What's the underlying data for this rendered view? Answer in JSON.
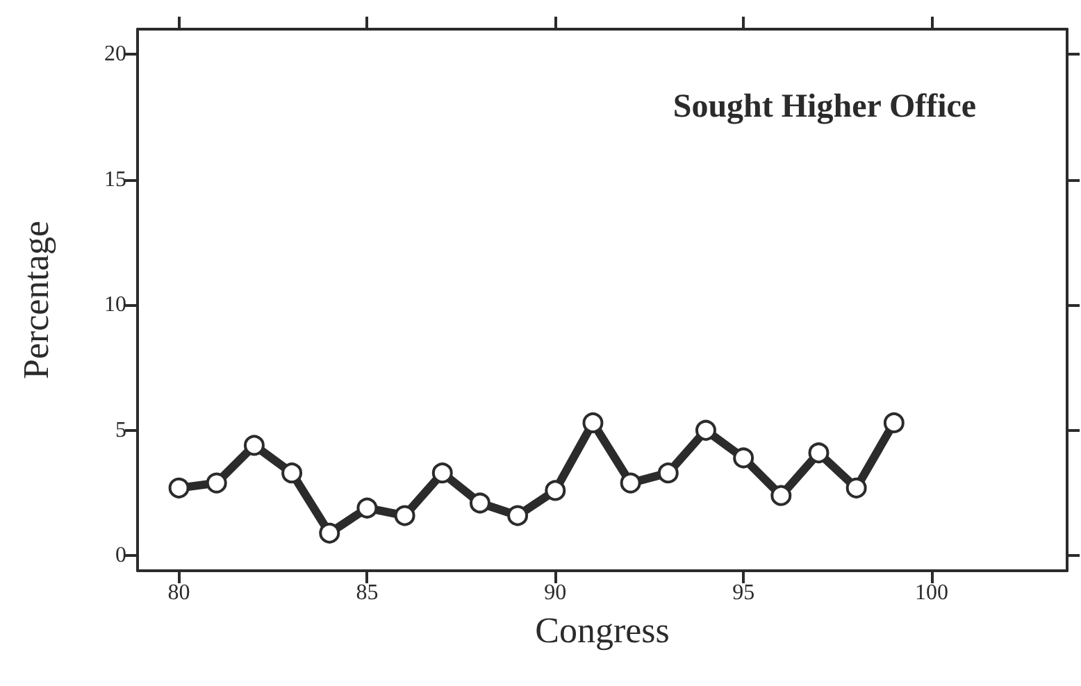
{
  "chart_data": {
    "type": "line",
    "title": "Sought Higher Office",
    "xlabel": "Congress",
    "ylabel": "Percentage",
    "x": [
      80,
      81,
      82,
      83,
      84,
      85,
      86,
      87,
      88,
      89,
      90,
      91,
      92,
      93,
      94,
      95,
      96,
      97,
      98,
      99
    ],
    "series": [
      {
        "color": "#2b2b2b",
        "values": [
          2.7,
          2.9,
          4.4,
          3.3,
          0.9,
          1.9,
          1.6,
          3.3,
          2.1,
          1.6,
          2.6,
          5.3,
          2.9,
          3.3,
          5.0,
          3.9,
          2.4,
          4.1,
          2.7,
          5.3
        ]
      }
    ],
    "xlim": [
      78.9,
      103.6
    ],
    "xticks": [
      80,
      85,
      90,
      95,
      100
    ],
    "ylim": [
      -0.6,
      21
    ],
    "yticks": [
      0,
      5,
      10,
      15,
      20
    ],
    "marker": "circle",
    "line_style": "solid"
  }
}
